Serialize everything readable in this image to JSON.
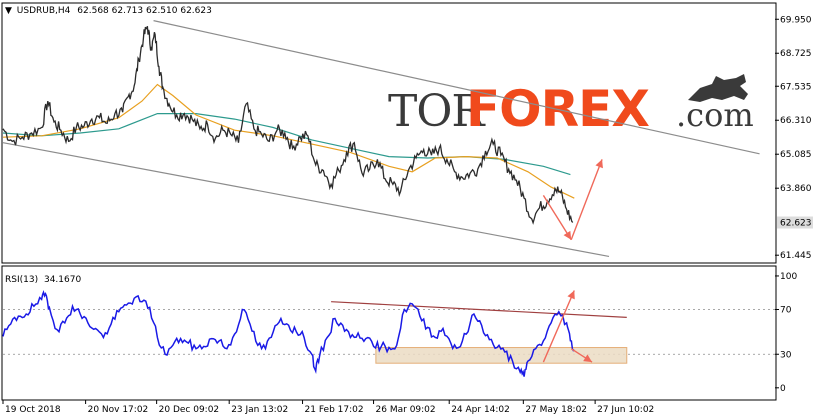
{
  "chart_data": [
    {
      "type": "line",
      "name": "main",
      "header": {
        "marker": "▼",
        "symbol": "USDRUB,H4",
        "ohlc": "62.568 62.713 62.510 62.623"
      },
      "y_ticks": [
        "69.950",
        "68.725",
        "67.535",
        "66.310",
        "65.085",
        "63.860",
        "62.623",
        "61.445"
      ],
      "ylim": [
        61.2,
        70.5
      ],
      "current_price": 62.623,
      "current_price_label": "62.623",
      "x_labels": [
        "19 Oct 2018",
        "20 Nov 17:02",
        "20 Dec 09:02",
        "23 Jan 13:02",
        "21 Feb 17:02",
        "26 Mar 09:02",
        "24 Apr 14:02",
        "27 May 18:02",
        "27 Jun 10:02"
      ],
      "x_label_positions": [
        0,
        0.107,
        0.199,
        0.293,
        0.388,
        0.48,
        0.578,
        0.674,
        0.767
      ],
      "price_path": [
        [
          0.0,
          66.0
        ],
        [
          0.012,
          65.55
        ],
        [
          0.025,
          65.7
        ],
        [
          0.037,
          65.85
        ],
        [
          0.05,
          66.05
        ],
        [
          0.058,
          67.0
        ],
        [
          0.066,
          66.25
        ],
        [
          0.075,
          65.95
        ],
        [
          0.085,
          65.55
        ],
        [
          0.095,
          66.05
        ],
        [
          0.105,
          66.1
        ],
        [
          0.115,
          66.35
        ],
        [
          0.125,
          66.4
        ],
        [
          0.135,
          66.2
        ],
        [
          0.145,
          66.55
        ],
        [
          0.155,
          66.6
        ],
        [
          0.162,
          67.15
        ],
        [
          0.17,
          67.55
        ],
        [
          0.176,
          68.5
        ],
        [
          0.182,
          69.3
        ],
        [
          0.187,
          69.7
        ],
        [
          0.192,
          68.9
        ],
        [
          0.197,
          69.4
        ],
        [
          0.202,
          68.25
        ],
        [
          0.207,
          67.5
        ],
        [
          0.215,
          66.9
        ],
        [
          0.225,
          66.5
        ],
        [
          0.235,
          66.55
        ],
        [
          0.245,
          66.35
        ],
        [
          0.255,
          66.0
        ],
        [
          0.265,
          66.15
        ],
        [
          0.275,
          65.65
        ],
        [
          0.285,
          65.95
        ],
        [
          0.295,
          65.8
        ],
        [
          0.305,
          65.5
        ],
        [
          0.315,
          66.9
        ],
        [
          0.325,
          66.0
        ],
        [
          0.335,
          65.8
        ],
        [
          0.345,
          65.55
        ],
        [
          0.355,
          65.95
        ],
        [
          0.365,
          65.85
        ],
        [
          0.375,
          65.3
        ],
        [
          0.385,
          65.7
        ],
        [
          0.395,
          65.75
        ],
        [
          0.405,
          64.7
        ],
        [
          0.415,
          64.5
        ],
        [
          0.425,
          64.0
        ],
        [
          0.435,
          64.5
        ],
        [
          0.445,
          65.15
        ],
        [
          0.455,
          65.5
        ],
        [
          0.465,
          64.4
        ],
        [
          0.475,
          64.55
        ],
        [
          0.485,
          64.9
        ],
        [
          0.495,
          64.2
        ],
        [
          0.505,
          64.0
        ],
        [
          0.515,
          63.75
        ],
        [
          0.525,
          64.5
        ],
        [
          0.535,
          64.95
        ],
        [
          0.545,
          65.25
        ],
        [
          0.555,
          65.05
        ],
        [
          0.565,
          65.3
        ],
        [
          0.575,
          64.9
        ],
        [
          0.585,
          64.45
        ],
        [
          0.595,
          64.25
        ],
        [
          0.605,
          64.4
        ],
        [
          0.615,
          64.55
        ],
        [
          0.625,
          65.2
        ],
        [
          0.635,
          65.45
        ],
        [
          0.645,
          65.05
        ],
        [
          0.655,
          64.55
        ],
        [
          0.665,
          64.15
        ],
        [
          0.675,
          63.5
        ],
        [
          0.685,
          62.75
        ],
        [
          0.695,
          63.15
        ],
        [
          0.705,
          63.4
        ],
        [
          0.715,
          63.85
        ],
        [
          0.722,
          63.7
        ],
        [
          0.73,
          63.1
        ],
        [
          0.738,
          62.623
        ]
      ],
      "ma_short_path": [
        [
          0.0,
          65.7
        ],
        [
          0.05,
          65.75
        ],
        [
          0.1,
          66.0
        ],
        [
          0.15,
          66.4
        ],
        [
          0.18,
          67.0
        ],
        [
          0.2,
          67.6
        ],
        [
          0.22,
          67.2
        ],
        [
          0.25,
          66.5
        ],
        [
          0.3,
          65.95
        ],
        [
          0.35,
          65.75
        ],
        [
          0.4,
          65.45
        ],
        [
          0.45,
          65.15
        ],
        [
          0.5,
          64.65
        ],
        [
          0.53,
          64.45
        ],
        [
          0.56,
          64.95
        ],
        [
          0.6,
          65.0
        ],
        [
          0.64,
          64.95
        ],
        [
          0.68,
          64.45
        ],
        [
          0.71,
          63.9
        ],
        [
          0.74,
          63.5
        ]
      ],
      "ma_long_path": [
        [
          0.0,
          65.85
        ],
        [
          0.05,
          65.75
        ],
        [
          0.1,
          65.85
        ],
        [
          0.15,
          66.0
        ],
        [
          0.2,
          66.55
        ],
        [
          0.25,
          66.55
        ],
        [
          0.3,
          66.35
        ],
        [
          0.35,
          66.05
        ],
        [
          0.4,
          65.6
        ],
        [
          0.45,
          65.3
        ],
        [
          0.5,
          65.0
        ],
        [
          0.55,
          64.95
        ],
        [
          0.6,
          65.0
        ],
        [
          0.65,
          64.9
        ],
        [
          0.7,
          64.65
        ],
        [
          0.735,
          64.35
        ]
      ],
      "channel_upper": [
        [
          0.195,
          69.9
        ],
        [
          0.98,
          65.1
        ]
      ],
      "channel_lower": [
        [
          0.0,
          65.5
        ],
        [
          0.785,
          61.4
        ]
      ],
      "forecast_arrows": [
        [
          [
            0.7,
            63.6
          ],
          [
            0.736,
            62.0
          ]
        ],
        [
          [
            0.736,
            62.0
          ],
          [
            0.776,
            64.9
          ]
        ]
      ],
      "colors": {
        "price": "#2b2b2b",
        "ma_short": "#e8a020",
        "ma_long": "#2d9a8e",
        "channel": "#8c8c8c",
        "arrow": "#f0695a",
        "price_box_bg": "#dcdcdc"
      }
    },
    {
      "type": "line",
      "name": "rsi",
      "header": {
        "title": "RSI(13)",
        "value": "34.1670"
      },
      "y_ticks": [
        "100",
        "70",
        "30",
        "0"
      ],
      "levels": [
        70,
        30
      ],
      "ylim": [
        -10,
        108
      ],
      "rsi_path": [
        [
          0.0,
          46
        ],
        [
          0.01,
          57
        ],
        [
          0.02,
          64
        ],
        [
          0.03,
          66
        ],
        [
          0.04,
          73
        ],
        [
          0.05,
          79
        ],
        [
          0.055,
          84
        ],
        [
          0.06,
          72
        ],
        [
          0.07,
          52
        ],
        [
          0.08,
          58
        ],
        [
          0.09,
          73
        ],
        [
          0.1,
          66
        ],
        [
          0.11,
          58
        ],
        [
          0.12,
          53
        ],
        [
          0.13,
          45
        ],
        [
          0.14,
          57
        ],
        [
          0.15,
          68
        ],
        [
          0.16,
          74
        ],
        [
          0.17,
          80
        ],
        [
          0.18,
          77
        ],
        [
          0.19,
          72
        ],
        [
          0.2,
          45
        ],
        [
          0.21,
          30
        ],
        [
          0.22,
          38
        ],
        [
          0.23,
          44
        ],
        [
          0.24,
          40
        ],
        [
          0.25,
          35
        ],
        [
          0.26,
          37
        ],
        [
          0.27,
          44
        ],
        [
          0.28,
          42
        ],
        [
          0.29,
          35
        ],
        [
          0.3,
          48
        ],
        [
          0.31,
          70
        ],
        [
          0.32,
          57
        ],
        [
          0.33,
          38
        ],
        [
          0.34,
          35
        ],
        [
          0.35,
          50
        ],
        [
          0.36,
          62
        ],
        [
          0.37,
          56
        ],
        [
          0.38,
          50
        ],
        [
          0.39,
          45
        ],
        [
          0.4,
          30
        ],
        [
          0.405,
          15
        ],
        [
          0.41,
          28
        ],
        [
          0.42,
          45
        ],
        [
          0.43,
          62
        ],
        [
          0.44,
          56
        ],
        [
          0.45,
          45
        ],
        [
          0.46,
          49
        ],
        [
          0.47,
          44
        ],
        [
          0.48,
          37
        ],
        [
          0.49,
          37
        ],
        [
          0.5,
          36
        ],
        [
          0.51,
          38
        ],
        [
          0.52,
          70
        ],
        [
          0.53,
          75
        ],
        [
          0.54,
          64
        ],
        [
          0.55,
          54
        ],
        [
          0.56,
          45
        ],
        [
          0.57,
          53
        ],
        [
          0.58,
          40
        ],
        [
          0.59,
          36
        ],
        [
          0.6,
          48
        ],
        [
          0.61,
          66
        ],
        [
          0.62,
          56
        ],
        [
          0.63,
          43
        ],
        [
          0.64,
          36
        ],
        [
          0.65,
          32
        ],
        [
          0.66,
          24
        ],
        [
          0.67,
          14
        ],
        [
          0.675,
          10
        ],
        [
          0.68,
          24
        ],
        [
          0.69,
          35
        ],
        [
          0.7,
          42
        ],
        [
          0.71,
          58
        ],
        [
          0.72,
          68
        ],
        [
          0.73,
          58
        ],
        [
          0.735,
          42
        ],
        [
          0.74,
          34
        ]
      ],
      "resistance_line": [
        [
          0.425,
          77
        ],
        [
          0.808,
          63
        ]
      ],
      "support_box": {
        "x": [
          0.483,
          0.808
        ],
        "y": [
          22,
          36
        ]
      },
      "forecast_arrows": [
        [
          [
            0.736,
            35
          ],
          [
            0.763,
            23
          ]
        ],
        [
          [
            0.7,
            23
          ],
          [
            0.74,
            87
          ]
        ]
      ],
      "colors": {
        "rsi": "#1a1ae6",
        "resistance": "#a04040",
        "support_fill": "#ecdcc4",
        "support_border": "#e0a060",
        "arrow": "#f0695a",
        "level": "#8c8c8c"
      }
    }
  ],
  "watermark": {
    "tor": "TOR",
    "forex": "FOREX",
    "com": ".com",
    "colors": {
      "dark": "#3a3a3a",
      "brand": "#f04a1c"
    }
  }
}
